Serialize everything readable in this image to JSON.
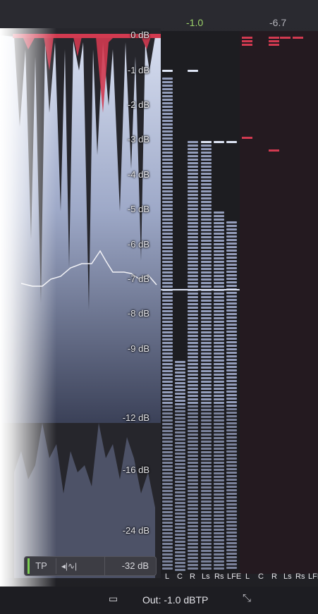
{
  "meters": {
    "peak_left": "-1.0",
    "peak_left_color": "#9cd36a",
    "peak_right": "-6.7",
    "peak_right_color": "#b3b3ba"
  },
  "db_scale": [
    "0 dB",
    "-1 dB",
    "-2 dB",
    "-3 dB",
    "-4 dB",
    "-5 dB",
    "-6 dB",
    "-7 dB",
    "-8 dB",
    "-9 dB",
    "-12 dB",
    "-16 dB",
    "-24 dB"
  ],
  "channels": [
    "L",
    "C",
    "R",
    "Ls",
    "Rs",
    "LFE",
    "L",
    "C",
    "R",
    "Ls",
    "Rs",
    "LFE"
  ],
  "controls": {
    "tp_label": "TP",
    "reverse_icon": "waveform-reverse-icon",
    "range_value": "-32 dB"
  },
  "status": {
    "window_icon": "window-icon",
    "output_text": "Out: -1.0 dBTP",
    "expand_icon": "expand-icon"
  },
  "colors": {
    "wave_fill": "#aab4d2",
    "overshoot": "#d23a50",
    "meter_seg": "#9aa4c4",
    "meter_hold": "#dfe6f6"
  }
}
